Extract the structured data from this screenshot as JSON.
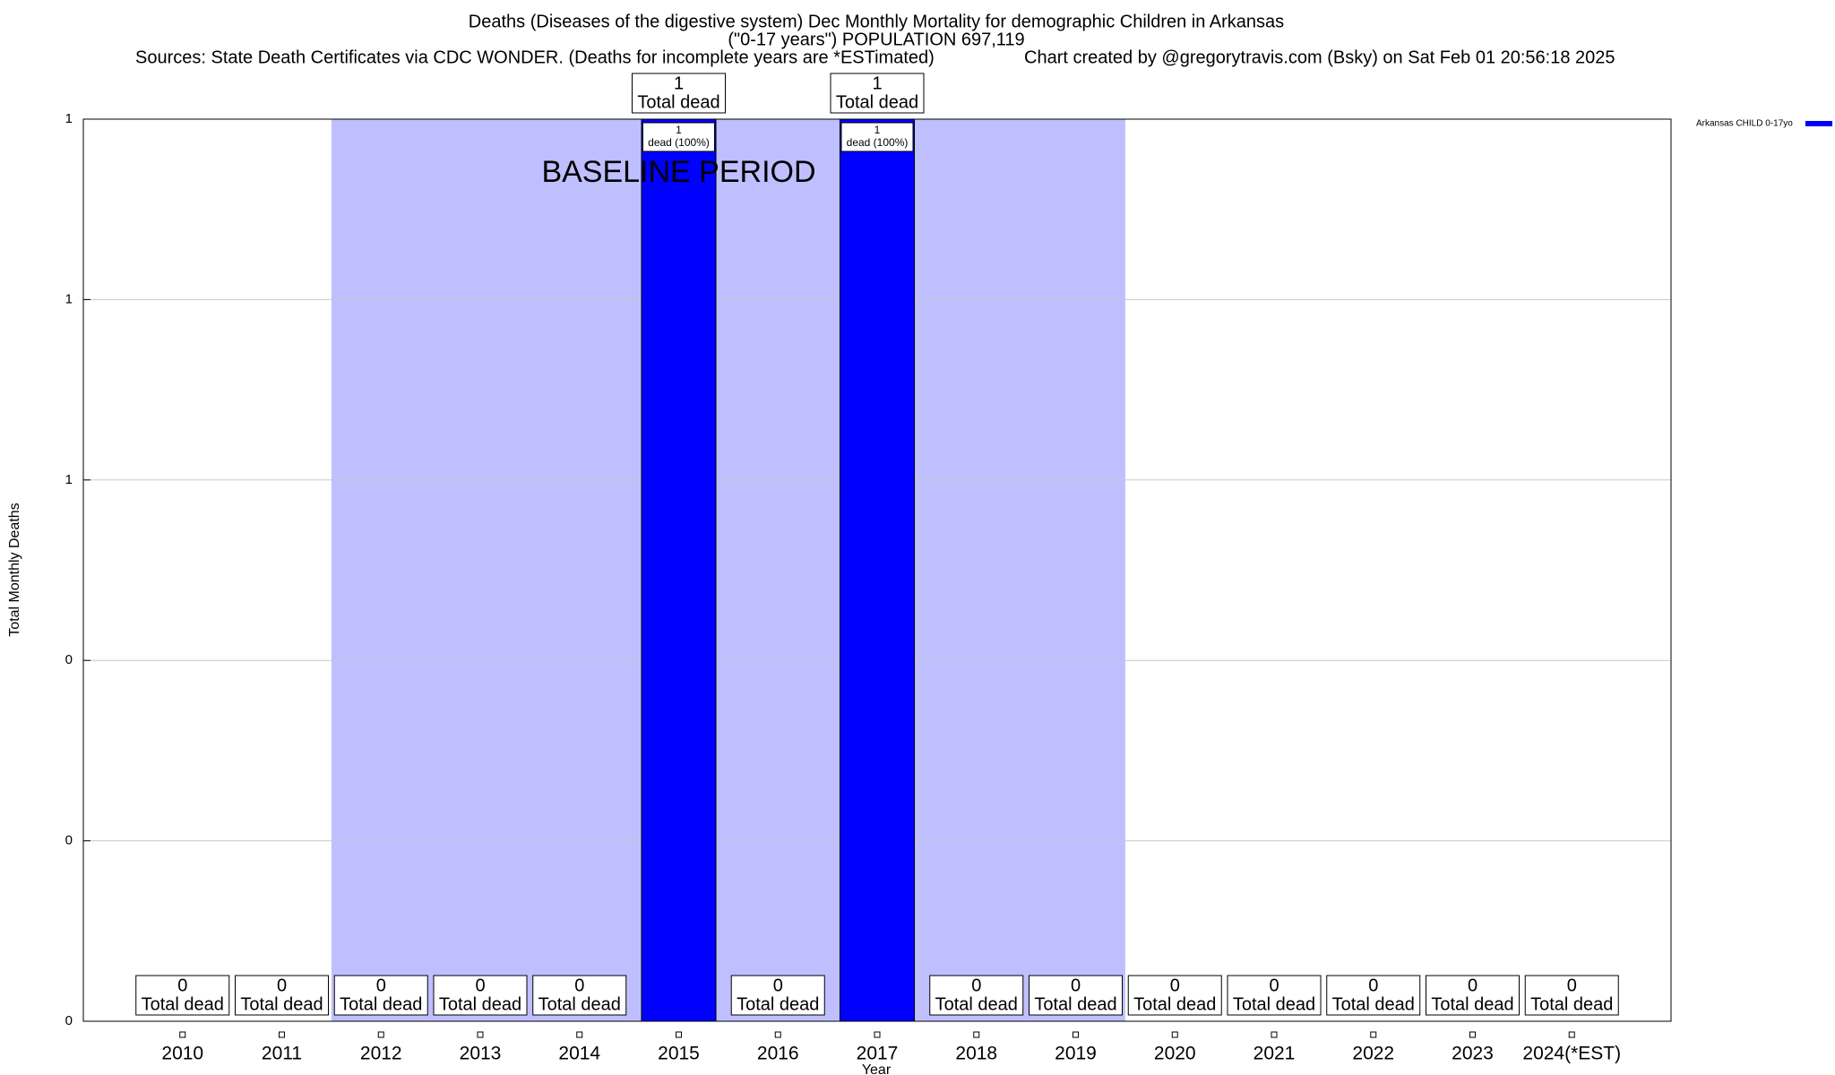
{
  "chart_data": {
    "type": "bar",
    "title": "Deaths (Diseases of the digestive system) Dec Monthly Mortality for demographic Children in Arkansas",
    "subtitle": "(\"0-17 years\") POPULATION 697,119",
    "sources": "Sources: State Death Certificates via CDC WONDER. (Deaths for incomplete years are *ESTimated)",
    "credit": "Chart created by @gregorytravis.com (Bsky) on Sat Feb 01 20:56:18 2025",
    "x_label": "Year",
    "y_label": "Total Monthly Deaths",
    "categories": [
      "2010",
      "2011",
      "2012",
      "2013",
      "2014",
      "2015",
      "2016",
      "2017",
      "2018",
      "2019",
      "2020",
      "2021",
      "2022",
      "2023",
      "2024(*EST)"
    ],
    "series": [
      {
        "name": "Arkansas CHILD 0-17yo",
        "color": "#0000ff",
        "values": [
          0,
          0,
          0,
          0,
          0,
          1,
          0,
          1,
          0,
          0,
          0,
          0,
          0,
          0,
          0
        ]
      }
    ],
    "total_label": "Total dead",
    "percent_labels": [
      null,
      null,
      null,
      null,
      null,
      "dead (100%)",
      null,
      "dead (100%)",
      null,
      null,
      null,
      null,
      null,
      null,
      null
    ],
    "baseline": {
      "label": "BASELINE PERIOD",
      "start": "2012",
      "end": "2019",
      "color": "#bfbfff"
    },
    "ylim": [
      0,
      1
    ],
    "yticks": [
      0,
      {
        "value": 0.2,
        "label": "0"
      },
      {
        "value": 0.4,
        "label": "0"
      },
      {
        "value": 0.6,
        "label": "1"
      },
      {
        "value": 0.8,
        "label": "1"
      },
      1
    ],
    "grid": true,
    "legend": "top-right"
  }
}
